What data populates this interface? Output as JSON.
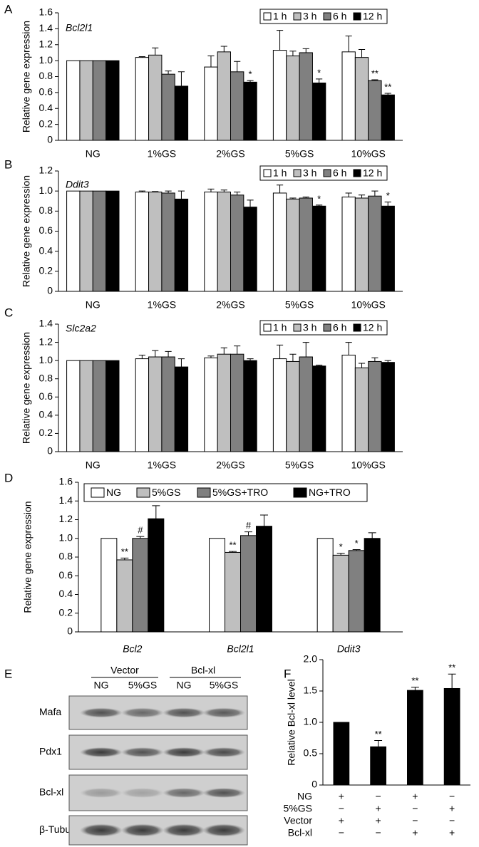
{
  "chart_data": [
    {
      "panel": "A",
      "type": "bar",
      "title": "Bcl2l1",
      "y_label": "Relative gene expression",
      "categories": [
        "NG",
        "1%GS",
        "2%GS",
        "5%GS",
        "10%GS"
      ],
      "series": [
        {
          "name": "1 h",
          "color": "#ffffff",
          "values": [
            1,
            1.04,
            0.92,
            1.13,
            1.11
          ],
          "errors": [
            0,
            0.01,
            0.14,
            0.25,
            0.2
          ],
          "significance": [
            null,
            null,
            null,
            null,
            null
          ]
        },
        {
          "name": "3 h",
          "color": "#bfbfbf",
          "values": [
            1,
            1.07,
            1.11,
            1.06,
            1.04
          ],
          "errors": [
            0,
            0.09,
            0.07,
            0.06,
            0.1
          ],
          "significance": [
            null,
            null,
            null,
            null,
            null
          ]
        },
        {
          "name": "6 h",
          "color": "#808080",
          "values": [
            1,
            0.83,
            0.86,
            1.1,
            0.75
          ],
          "errors": [
            0,
            0.04,
            0.13,
            0.05,
            0.01
          ],
          "significance": [
            null,
            null,
            null,
            null,
            "**"
          ]
        },
        {
          "name": "12 h",
          "color": "#000000",
          "values": [
            1,
            0.68,
            0.73,
            0.72,
            0.57
          ],
          "errors": [
            0,
            0.18,
            0.02,
            0.05,
            0.02
          ],
          "significance": [
            null,
            null,
            "*",
            "*",
            "**"
          ]
        }
      ],
      "ylim": [
        0,
        1.6
      ],
      "yticks": [
        0,
        0.2,
        0.4,
        0.6,
        0.8,
        {
          "value": 1,
          "label": "1.0"
        },
        1.2,
        1.4,
        1.6
      ],
      "legend": "upper right"
    },
    {
      "panel": "B",
      "type": "bar",
      "title": "Ddit3",
      "y_label": "Relative gene expression",
      "categories": [
        "NG",
        "1%GS",
        "2%GS",
        "5%GS",
        "10%GS"
      ],
      "series": [
        {
          "name": "1 h",
          "color": "#ffffff",
          "values": [
            1,
            0.99,
            0.99,
            0.98,
            0.94
          ],
          "errors": [
            0,
            0.01,
            0.03,
            0.08,
            0.04
          ],
          "significance": [
            null,
            null,
            null,
            null,
            null
          ]
        },
        {
          "name": "3 h",
          "color": "#bfbfbf",
          "values": [
            1,
            0.99,
            0.99,
            0.92,
            0.93
          ],
          "errors": [
            0,
            0.005,
            0.02,
            0.01,
            0.03
          ],
          "significance": [
            null,
            null,
            null,
            null,
            null
          ]
        },
        {
          "name": "6 h",
          "color": "#808080",
          "values": [
            1,
            0.98,
            0.96,
            0.93,
            0.95
          ],
          "errors": [
            0,
            0.02,
            0.03,
            0.01,
            0.05
          ],
          "significance": [
            null,
            null,
            null,
            null,
            null
          ]
        },
        {
          "name": "12 h",
          "color": "#000000",
          "values": [
            1,
            0.92,
            0.84,
            0.85,
            0.85
          ],
          "errors": [
            0,
            0.08,
            0.07,
            0.01,
            0.04
          ],
          "significance": [
            null,
            null,
            null,
            "*",
            "*"
          ]
        }
      ],
      "ylim": [
        0,
        1.2
      ],
      "yticks": [
        0,
        0.2,
        0.4,
        0.6,
        0.8,
        {
          "value": 1,
          "label": "1.0"
        },
        1.2
      ],
      "legend": "upper right"
    },
    {
      "panel": "C",
      "type": "bar",
      "title": "Slc2a2",
      "y_label": "Relative gene expression",
      "categories": [
        "NG",
        "1%GS",
        "2%GS",
        "5%GS",
        "10%GS"
      ],
      "series": [
        {
          "name": "1 h",
          "color": "#ffffff",
          "values": [
            1,
            1.02,
            1.03,
            1.02,
            1.06
          ],
          "errors": [
            0,
            0.04,
            0.02,
            0.15,
            0.14
          ],
          "significance": [
            null,
            null,
            null,
            null,
            null
          ]
        },
        {
          "name": "3 h",
          "color": "#bfbfbf",
          "values": [
            1,
            1.04,
            1.07,
            0.99,
            0.92
          ],
          "errors": [
            0,
            0.07,
            0.07,
            0.08,
            0.05
          ],
          "significance": [
            null,
            null,
            null,
            null,
            null
          ]
        },
        {
          "name": "6 h",
          "color": "#808080",
          "values": [
            1,
            1.04,
            1.07,
            1.04,
            0.99
          ],
          "errors": [
            0,
            0.06,
            0.09,
            0.16,
            0.04
          ],
          "significance": [
            null,
            null,
            null,
            null,
            null
          ]
        },
        {
          "name": "12 h",
          "color": "#000000",
          "values": [
            1,
            0.93,
            1.0,
            0.94,
            0.98
          ],
          "errors": [
            0,
            0.09,
            0.02,
            0.01,
            0.02
          ],
          "significance": [
            null,
            null,
            null,
            null,
            null
          ]
        }
      ],
      "ylim": [
        0,
        1.4
      ],
      "yticks": [
        0,
        0.2,
        0.4,
        0.6,
        0.8,
        {
          "value": 1,
          "label": "1.0"
        },
        1.2,
        1.4
      ],
      "legend": "upper right"
    },
    {
      "panel": "D",
      "type": "bar",
      "y_label": "Relative gene expression",
      "categories": [
        "Bcl2",
        "Bcl2l1",
        "Ddit3"
      ],
      "series": [
        {
          "name": "NG",
          "color": "#ffffff",
          "values": [
            1,
            1,
            1
          ],
          "errors": [
            0,
            0,
            0
          ],
          "significance": [
            null,
            null,
            null
          ]
        },
        {
          "name": "5%GS",
          "color": "#bfbfbf",
          "values": [
            0.77,
            0.85,
            0.82
          ],
          "errors": [
            0.02,
            0.01,
            0.02
          ],
          "significance": [
            "**",
            "**",
            "*"
          ]
        },
        {
          "name": "5%GS+TRO",
          "color": "#808080",
          "values": [
            1.0,
            1.03,
            0.87
          ],
          "errors": [
            0.02,
            0.04,
            0.01
          ],
          "significance": [
            "#",
            "#",
            "*"
          ]
        },
        {
          "name": "NG+TRO",
          "color": "#000000",
          "values": [
            1.21,
            1.13,
            1.0
          ],
          "errors": [
            0.14,
            0.12,
            0.06
          ],
          "significance": [
            null,
            null,
            null
          ]
        }
      ],
      "ylim": [
        0,
        1.6
      ],
      "yticks": [
        0,
        0.2,
        0.4,
        0.6,
        0.8,
        {
          "value": 1,
          "label": "1.0"
        },
        1.2,
        1.4,
        1.6
      ],
      "legend": "upper center"
    },
    {
      "panel": "F",
      "type": "bar",
      "y_label": "Relative Bcl-xl level",
      "series": [
        {
          "color": "#000000",
          "values": [
            1,
            0.61,
            1.51,
            1.54
          ],
          "errors": [
            0,
            0.1,
            0.05,
            0.23
          ],
          "significance": [
            null,
            "**",
            "**",
            "**"
          ]
        }
      ],
      "conditions": [
        {
          "label": "NG",
          "signs": [
            "+",
            "−",
            "+",
            "−"
          ]
        },
        {
          "label": "5%GS",
          "signs": [
            "−",
            "+",
            "−",
            "+"
          ]
        },
        {
          "label": "Vector",
          "signs": [
            "+",
            "+",
            "−",
            "−"
          ]
        },
        {
          "label": "Bcl-xl",
          "signs": [
            "−",
            "−",
            "+",
            "+"
          ]
        }
      ],
      "ylim": [
        0,
        2.0
      ],
      "yticks": [
        0,
        0.5,
        {
          "value": 1,
          "label": "1.0"
        },
        1.5,
        {
          "value": 2,
          "label": "2.0"
        }
      ]
    }
  ],
  "blot": {
    "panel": "E",
    "groups": [
      "Vector",
      "Bcl-xl"
    ],
    "lanes": [
      "NG",
      "5%GS",
      "NG",
      "5%GS"
    ],
    "rows": [
      "Mafa",
      "Pdx1",
      "Bcl-xl",
      "β-Tubulin"
    ]
  }
}
